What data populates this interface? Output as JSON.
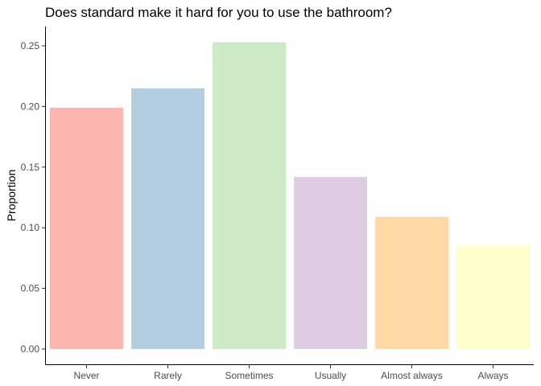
{
  "chart_data": {
    "type": "bar",
    "title": "Does standard make it hard for you to use the bathroom?",
    "xlabel": "",
    "ylabel": "Proportion",
    "categories": [
      "Never",
      "Rarely",
      "Sometimes",
      "Usually",
      "Almost always",
      "Always"
    ],
    "values": [
      0.199,
      0.215,
      0.253,
      0.142,
      0.109,
      0.086
    ],
    "colors": [
      "#FBB4AE",
      "#B3CDE3",
      "#CCEBC5",
      "#DECBE4",
      "#FED9A6",
      "#FFFFCC"
    ],
    "yticks": [
      0,
      0.05,
      0.1,
      0.15,
      0.2,
      0.25
    ],
    "ytick_labels": [
      "0.00",
      "0.05",
      "0.10",
      "0.15",
      "0.20",
      "0.25"
    ],
    "ylim": [
      0,
      0.265
    ],
    "grid": false,
    "legend": "none"
  }
}
